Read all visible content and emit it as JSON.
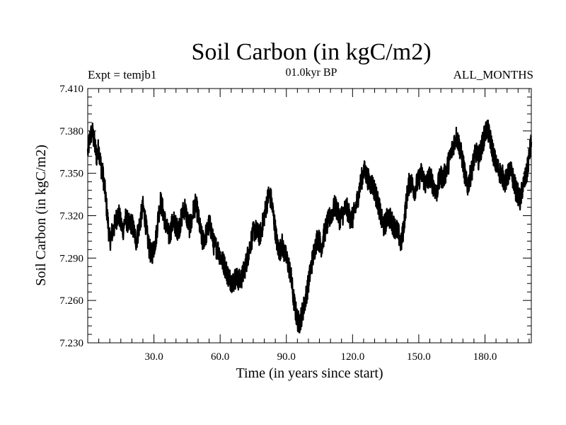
{
  "header": {
    "title": "Soil Carbon (in kgC/m2)",
    "subtitle": "01.0kyr BP",
    "left_label": "Expt = temjb1",
    "right_label": "ALL_MONTHS"
  },
  "chart_data": {
    "type": "line",
    "title": "Soil Carbon (in kgC/m2)",
    "xlabel": "Time (in years since start)",
    "ylabel": "Soil Carbon (in kgC/m2)",
    "xlim": [
      0,
      201
    ],
    "ylim": [
      7.23,
      7.41
    ],
    "x_ticks": [
      30,
      60,
      90,
      120,
      150,
      180
    ],
    "x_tick_labels": [
      "30.0",
      "60.0",
      "90.0",
      "120.0",
      "150.0",
      "180.0"
    ],
    "y_ticks": [
      7.23,
      7.26,
      7.29,
      7.32,
      7.35,
      7.38,
      7.41
    ],
    "y_tick_labels": [
      "7.230",
      "7.260",
      "7.290",
      "7.320",
      "7.350",
      "7.380",
      "7.410"
    ],
    "series": [
      {
        "name": "Soil Carbon",
        "color": "#000000",
        "x": [
          0,
          1,
          2,
          3,
          4,
          5,
          6,
          7,
          8,
          9,
          10,
          11,
          12,
          13,
          14,
          15,
          16,
          17,
          18,
          19,
          20,
          21,
          22,
          23,
          24,
          25,
          26,
          27,
          28,
          29,
          30,
          31,
          32,
          33,
          34,
          35,
          36,
          37,
          38,
          39,
          40,
          41,
          42,
          43,
          44,
          45,
          46,
          47,
          48,
          49,
          50,
          51,
          52,
          53,
          54,
          55,
          56,
          57,
          58,
          59,
          60,
          61,
          62,
          63,
          64,
          65,
          66,
          67,
          68,
          69,
          70,
          71,
          72,
          73,
          74,
          75,
          76,
          77,
          78,
          79,
          80,
          81,
          82,
          83,
          84,
          85,
          86,
          87,
          88,
          89,
          90,
          91,
          92,
          93,
          94,
          95,
          96,
          97,
          98,
          99,
          100,
          101,
          102,
          103,
          104,
          105,
          106,
          107,
          108,
          109,
          110,
          111,
          112,
          113,
          114,
          115,
          116,
          117,
          118,
          119,
          120,
          121,
          122,
          123,
          124,
          125,
          126,
          127,
          128,
          129,
          130,
          131,
          132,
          133,
          134,
          135,
          136,
          137,
          138,
          139,
          140,
          141,
          142,
          143,
          144,
          145,
          146,
          147,
          148,
          149,
          150,
          151,
          152,
          153,
          154,
          155,
          156,
          157,
          158,
          159,
          160,
          161,
          162,
          163,
          164,
          165,
          166,
          167,
          168,
          169,
          170,
          171,
          172,
          173,
          174,
          175,
          176,
          177,
          178,
          179,
          180,
          181,
          182,
          183,
          184,
          185,
          186,
          187,
          188,
          189,
          190,
          191,
          192,
          193,
          194,
          195,
          196,
          197,
          198,
          199,
          200,
          201
        ],
        "y": [
          7.365,
          7.375,
          7.38,
          7.372,
          7.362,
          7.368,
          7.355,
          7.348,
          7.335,
          7.318,
          7.302,
          7.308,
          7.312,
          7.318,
          7.322,
          7.314,
          7.31,
          7.318,
          7.316,
          7.313,
          7.315,
          7.308,
          7.302,
          7.31,
          7.318,
          7.326,
          7.318,
          7.305,
          7.296,
          7.292,
          7.298,
          7.305,
          7.32,
          7.33,
          7.324,
          7.316,
          7.31,
          7.305,
          7.313,
          7.316,
          7.312,
          7.31,
          7.315,
          7.322,
          7.326,
          7.318,
          7.312,
          7.315,
          7.325,
          7.328,
          7.32,
          7.31,
          7.302,
          7.305,
          7.308,
          7.314,
          7.31,
          7.3,
          7.298,
          7.296,
          7.292,
          7.288,
          7.285,
          7.28,
          7.276,
          7.274,
          7.273,
          7.276,
          7.275,
          7.274,
          7.277,
          7.282,
          7.288,
          7.295,
          7.302,
          7.308,
          7.31,
          7.307,
          7.306,
          7.312,
          7.32,
          7.328,
          7.335,
          7.332,
          7.322,
          7.31,
          7.298,
          7.295,
          7.3,
          7.294,
          7.29,
          7.285,
          7.278,
          7.264,
          7.254,
          7.246,
          7.244,
          7.25,
          7.256,
          7.264,
          7.272,
          7.282,
          7.29,
          7.298,
          7.304,
          7.302,
          7.298,
          7.306,
          7.312,
          7.316,
          7.32,
          7.323,
          7.327,
          7.324,
          7.318,
          7.32,
          7.322,
          7.326,
          7.323,
          7.318,
          7.318,
          7.323,
          7.33,
          7.338,
          7.345,
          7.352,
          7.35,
          7.346,
          7.343,
          7.342,
          7.338,
          7.332,
          7.326,
          7.318,
          7.312,
          7.315,
          7.32,
          7.318,
          7.315,
          7.312,
          7.31,
          7.306,
          7.3,
          7.31,
          7.325,
          7.338,
          7.345,
          7.342,
          7.338,
          7.342,
          7.345,
          7.35,
          7.347,
          7.342,
          7.345,
          7.348,
          7.344,
          7.34,
          7.336,
          7.343,
          7.348,
          7.346,
          7.35,
          7.355,
          7.36,
          7.366,
          7.372,
          7.376,
          7.372,
          7.365,
          7.358,
          7.348,
          7.34,
          7.346,
          7.352,
          7.36,
          7.365,
          7.36,
          7.366,
          7.372,
          7.378,
          7.382,
          7.376,
          7.37,
          7.362,
          7.356,
          7.353,
          7.35,
          7.348,
          7.344,
          7.346,
          7.352,
          7.35,
          7.345,
          7.338,
          7.335,
          7.33,
          7.34,
          7.345,
          7.35,
          7.362,
          7.372
        ]
      }
    ]
  }
}
